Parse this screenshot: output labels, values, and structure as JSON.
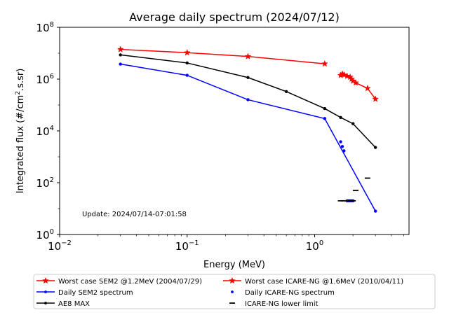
{
  "chart_data": {
    "type": "line",
    "title": "Average daily spectrum (2024/07/12)",
    "xlabel": "Energy (MeV)",
    "ylabel_parts": [
      "Integrated flux (#/cm",
      "2",
      ".s.sr)"
    ],
    "x_scale": "log",
    "y_scale": "log",
    "xlim": [
      0.01,
      5.5
    ],
    "ylim": [
      1,
      100000000
    ],
    "grid": false,
    "legend_position": "bottom",
    "annotation": "Update: 2024/07/14-07:01:58",
    "x_ticks": [
      {
        "value": 0.01,
        "base": "10",
        "exp": "−2"
      },
      {
        "value": 0.1,
        "base": "10",
        "exp": "−1"
      },
      {
        "value": 1,
        "base": "10",
        "exp": "0"
      }
    ],
    "y_ticks": [
      {
        "value": 1,
        "base": "10",
        "exp": "0"
      },
      {
        "value": 100,
        "base": "10",
        "exp": "2"
      },
      {
        "value": 10000,
        "base": "10",
        "exp": "4"
      },
      {
        "value": 1000000,
        "base": "10",
        "exp": "6"
      },
      {
        "value": 100000000,
        "base": "10",
        "exp": "8"
      }
    ],
    "series": [
      {
        "name": "Worst case SEM2 @1.2MeV (2004/07/29)",
        "color": "#ff0000",
        "marker": "star",
        "line": true,
        "x": [
          0.03,
          0.1,
          0.3,
          1.2
        ],
        "y": [
          14000000,
          10500000,
          7500000,
          3900000
        ]
      },
      {
        "name": "Daily SEM2 spectrum",
        "color": "#0000ff",
        "marker": "dot",
        "line": true,
        "x": [
          0.03,
          0.1,
          0.3,
          1.2,
          3.0
        ],
        "y": [
          3800000,
          1400000,
          160000,
          30000,
          8
        ]
      },
      {
        "name": "AE8 MAX",
        "color": "#000000",
        "marker": "dot",
        "line": true,
        "x": [
          0.03,
          0.1,
          0.3,
          0.6,
          1.2,
          1.6,
          2.0,
          3.0
        ],
        "y": [
          8600000,
          4200000,
          1150000,
          330000,
          73000,
          33000,
          19000,
          2300
        ]
      },
      {
        "name": "Worst case ICARE-NG @1.6MeV (2010/04/11)",
        "color": "#ff0000",
        "marker": "star",
        "line": true,
        "x": [
          1.6,
          1.65,
          1.7,
          1.8,
          1.9,
          1.95,
          2.0,
          2.1,
          2.6,
          3.0
        ],
        "y": [
          1400000,
          1600000,
          1450000,
          1300000,
          1200000,
          1000000,
          850000,
          720000,
          440000,
          170000
        ]
      },
      {
        "name": "Daily ICARE-NG spectrum",
        "color": "#0000ff",
        "marker": "dot",
        "line": false,
        "x": [
          1.6,
          1.65,
          1.7,
          1.8,
          1.85,
          1.9,
          1.95,
          2.0
        ],
        "y": [
          3800,
          2500,
          1700,
          20,
          20,
          20,
          20,
          20
        ]
      },
      {
        "name": "ICARE-NG lower limit",
        "color": "#000000",
        "marker": "dash",
        "line": false,
        "x": [
          1.6,
          1.7,
          1.8,
          1.9,
          2.0,
          2.1,
          2.6
        ],
        "y": [
          20,
          20,
          20,
          20,
          20,
          50,
          150
        ]
      }
    ]
  }
}
